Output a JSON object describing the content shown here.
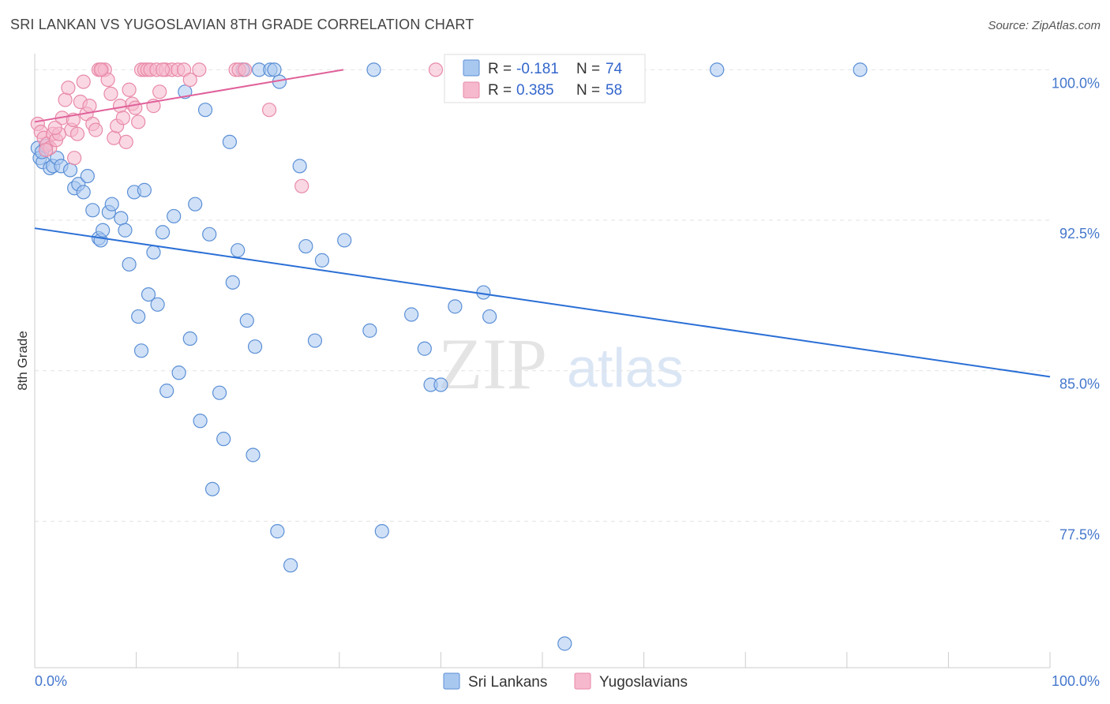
{
  "title": "SRI LANKAN VS YUGOSLAVIAN 8TH GRADE CORRELATION CHART",
  "source": "Source: ZipAtlas.com",
  "watermark": {
    "zip": "ZIP",
    "atlas": "atlas"
  },
  "chart_data": {
    "type": "scatter",
    "xlabel": "",
    "ylabel": "8th Grade",
    "xlim": [
      0,
      100
    ],
    "ylim": [
      70.2,
      100.8
    ],
    "y_ticks": [
      {
        "value": 100.0,
        "label": "100.0%"
      },
      {
        "value": 92.5,
        "label": "92.5%"
      },
      {
        "value": 85.0,
        "label": "85.0%"
      },
      {
        "value": 77.5,
        "label": "77.5%"
      }
    ],
    "x_tick_labels": {
      "min": "0.0%",
      "max": "100.0%"
    },
    "grid": true,
    "legend": {
      "r_label": "R =",
      "n_label": "N =",
      "placement": "top-center",
      "entries": [
        {
          "name": "Sri Lankans",
          "r": "-0.181",
          "n": "74"
        },
        {
          "name": "Yugoslavians",
          "r": "0.385",
          "n": "58"
        }
      ]
    },
    "colors": {
      "sri_fill": "#a9c8f0",
      "sri_stroke": "#5b8fd6",
      "sri_line": "#2a6fd6",
      "yug_fill": "#f6b8cc",
      "yug_stroke": "#e88aa8",
      "yug_line": "#e0609a",
      "axis_text": "#4477cc",
      "grid": "#e2e2e2"
    },
    "series": [
      {
        "name": "Sri Lankans",
        "trend": {
          "x0": 0,
          "y0": 92.1,
          "x1": 100,
          "y1": 84.7
        },
        "points": [
          [
            0.3,
            96.1
          ],
          [
            0.5,
            95.6
          ],
          [
            0.8,
            95.4
          ],
          [
            1.1,
            96.2
          ],
          [
            1.5,
            95.1
          ],
          [
            1.8,
            95.2
          ],
          [
            2.2,
            95.6
          ],
          [
            2.6,
            95.2
          ],
          [
            3.5,
            95.0
          ],
          [
            3.9,
            94.1
          ],
          [
            4.3,
            94.3
          ],
          [
            4.8,
            93.9
          ],
          [
            5.2,
            94.7
          ],
          [
            5.7,
            93.0
          ],
          [
            6.3,
            91.6
          ],
          [
            6.5,
            91.5
          ],
          [
            6.7,
            92.0
          ],
          [
            7.3,
            92.9
          ],
          [
            7.6,
            93.3
          ],
          [
            8.5,
            92.6
          ],
          [
            8.9,
            92.0
          ],
          [
            9.3,
            90.3
          ],
          [
            9.8,
            93.9
          ],
          [
            10.2,
            87.7
          ],
          [
            10.5,
            86.0
          ],
          [
            10.8,
            94.0
          ],
          [
            11.2,
            88.8
          ],
          [
            11.7,
            90.9
          ],
          [
            12.1,
            88.3
          ],
          [
            12.6,
            91.9
          ],
          [
            13.0,
            84.0
          ],
          [
            13.7,
            92.7
          ],
          [
            14.2,
            84.9
          ],
          [
            14.8,
            98.9
          ],
          [
            15.3,
            86.6
          ],
          [
            15.8,
            93.3
          ],
          [
            16.3,
            82.5
          ],
          [
            16.8,
            98.0
          ],
          [
            17.2,
            91.8
          ],
          [
            17.5,
            79.1
          ],
          [
            18.2,
            83.9
          ],
          [
            18.6,
            81.6
          ],
          [
            19.2,
            96.4
          ],
          [
            19.5,
            89.4
          ],
          [
            20.0,
            91.0
          ],
          [
            20.5,
            100.0
          ],
          [
            20.9,
            87.5
          ],
          [
            21.5,
            80.8
          ],
          [
            21.7,
            86.2
          ],
          [
            22.1,
            100.0
          ],
          [
            23.2,
            100.0
          ],
          [
            23.6,
            100.0
          ],
          [
            23.9,
            77.0
          ],
          [
            24.1,
            99.4
          ],
          [
            25.2,
            75.3
          ],
          [
            26.1,
            95.2
          ],
          [
            26.7,
            91.2
          ],
          [
            27.6,
            86.5
          ],
          [
            28.3,
            90.5
          ],
          [
            30.5,
            91.5
          ],
          [
            33.0,
            87.0
          ],
          [
            33.4,
            100.0
          ],
          [
            34.2,
            77.0
          ],
          [
            37.1,
            87.8
          ],
          [
            38.4,
            86.1
          ],
          [
            39.0,
            84.3
          ],
          [
            40.0,
            84.3
          ],
          [
            41.4,
            88.2
          ],
          [
            44.2,
            88.9
          ],
          [
            44.8,
            87.7
          ],
          [
            52.2,
            71.4
          ],
          [
            67.2,
            100.0
          ],
          [
            81.3,
            100.0
          ],
          [
            0.7,
            95.9
          ]
        ]
      },
      {
        "name": "Yugoslavians",
        "trend": {
          "x0": 0,
          "y0": 97.4,
          "x1": 30.4,
          "y1": 100.0
        },
        "points": [
          [
            0.3,
            97.3
          ],
          [
            0.6,
            96.9
          ],
          [
            0.9,
            96.6
          ],
          [
            1.2,
            96.3
          ],
          [
            1.5,
            96.1
          ],
          [
            1.8,
            96.8
          ],
          [
            2.1,
            96.5
          ],
          [
            2.4,
            96.8
          ],
          [
            2.7,
            97.6
          ],
          [
            3.0,
            98.5
          ],
          [
            3.3,
            99.1
          ],
          [
            3.6,
            97.0
          ],
          [
            3.9,
            95.6
          ],
          [
            4.2,
            96.8
          ],
          [
            4.5,
            98.4
          ],
          [
            4.8,
            99.4
          ],
          [
            5.1,
            97.8
          ],
          [
            5.4,
            98.2
          ],
          [
            5.7,
            97.3
          ],
          [
            6.0,
            97.0
          ],
          [
            6.3,
            100.0
          ],
          [
            6.6,
            100.0
          ],
          [
            6.9,
            100.0
          ],
          [
            7.2,
            99.5
          ],
          [
            7.5,
            98.8
          ],
          [
            7.8,
            96.6
          ],
          [
            8.1,
            97.2
          ],
          [
            8.4,
            98.2
          ],
          [
            8.7,
            97.6
          ],
          [
            9.0,
            96.4
          ],
          [
            9.3,
            99.0
          ],
          [
            9.6,
            98.3
          ],
          [
            9.9,
            98.1
          ],
          [
            10.2,
            97.4
          ],
          [
            10.5,
            100.0
          ],
          [
            10.8,
            100.0
          ],
          [
            11.1,
            100.0
          ],
          [
            11.4,
            100.0
          ],
          [
            11.7,
            98.2
          ],
          [
            12.0,
            100.0
          ],
          [
            12.3,
            98.9
          ],
          [
            12.9,
            100.0
          ],
          [
            13.5,
            100.0
          ],
          [
            14.1,
            100.0
          ],
          [
            14.7,
            100.0
          ],
          [
            15.3,
            99.5
          ],
          [
            16.2,
            100.0
          ],
          [
            19.8,
            100.0
          ],
          [
            20.1,
            100.0
          ],
          [
            20.7,
            100.0
          ],
          [
            23.1,
            98.0
          ],
          [
            26.3,
            94.2
          ],
          [
            39.5,
            100.0
          ],
          [
            1.1,
            96.0
          ],
          [
            2.0,
            97.1
          ],
          [
            3.8,
            97.5
          ],
          [
            6.5,
            100.0
          ],
          [
            12.6,
            100.0
          ]
        ]
      }
    ]
  }
}
